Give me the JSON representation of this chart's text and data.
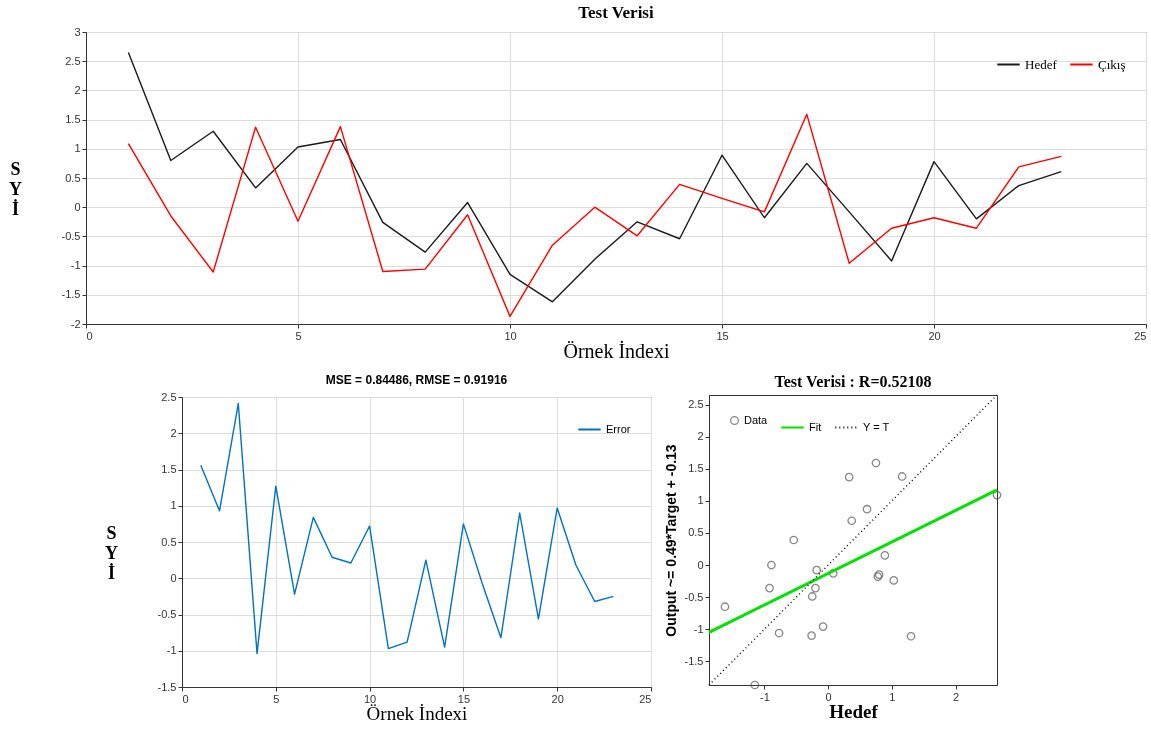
{
  "chart_data": [
    {
      "type": "line",
      "title": "Test Verisi",
      "xlabel": "Örnek İndexi",
      "ylabel": "SYİ",
      "x": [
        1,
        2,
        3,
        4,
        5,
        6,
        7,
        8,
        9,
        10,
        11,
        12,
        13,
        14,
        15,
        16,
        17,
        18,
        19,
        20,
        21,
        22,
        23
      ],
      "xlim": [
        0,
        25
      ],
      "xticks": [
        0,
        5,
        10,
        15,
        20,
        25
      ],
      "ylim": [
        -2,
        3
      ],
      "yticks": [
        -2,
        -1.5,
        -1,
        -0.5,
        0,
        0.5,
        1,
        1.5,
        2,
        2.5,
        3
      ],
      "grid": true,
      "legend": "top right",
      "series": [
        {
          "name": "Hedef",
          "color": "#1a1a1a",
          "values": [
            2.65,
            0.8,
            1.3,
            0.33,
            1.03,
            1.16,
            -0.26,
            -0.77,
            0.08,
            -1.15,
            -1.62,
            -0.89,
            -0.25,
            -0.54,
            0.89,
            -0.18,
            0.75,
            -0.08,
            -0.92,
            0.78,
            -0.2,
            0.37,
            0.61
          ]
        },
        {
          "name": "Çıkış",
          "color": "#ff0000",
          "values": [
            1.09,
            -0.15,
            -1.11,
            1.37,
            -0.24,
            1.38,
            -1.1,
            -1.06,
            -0.13,
            -1.87,
            -0.65,
            0.0,
            -0.49,
            0.39,
            0.15,
            -0.08,
            1.59,
            -0.96,
            -0.36,
            -0.18,
            -0.36,
            0.69,
            0.87
          ]
        }
      ]
    },
    {
      "type": "line",
      "title": "MSE = 0.84486, RMSE = 0.91916",
      "xlabel": "Örnek İndexi",
      "ylabel": "SYİ",
      "x": [
        1,
        2,
        3,
        4,
        5,
        6,
        7,
        8,
        9,
        10,
        11,
        12,
        13,
        14,
        15,
        16,
        17,
        18,
        19,
        20,
        21,
        22,
        23
      ],
      "xlim": [
        0,
        25
      ],
      "xticks": [
        0,
        5,
        10,
        15,
        20,
        25
      ],
      "ylim": [
        -1.5,
        2.5
      ],
      "yticks": [
        -1.5,
        -1,
        -0.5,
        0,
        0.5,
        1,
        1.5,
        2,
        2.5
      ],
      "grid": true,
      "legend": "top right",
      "series": [
        {
          "name": "Error",
          "color": "#0072bd",
          "values": [
            1.56,
            0.93,
            2.41,
            -1.04,
            1.27,
            -0.22,
            0.84,
            0.29,
            0.21,
            0.72,
            -0.97,
            -0.88,
            0.25,
            -0.95,
            0.75,
            -0.07,
            -0.82,
            0.9,
            -0.56,
            0.97,
            0.18,
            -0.32,
            -0.25
          ]
        }
      ]
    },
    {
      "type": "scatter",
      "title": "Test Verisi : R=0.52108",
      "xlabel": "Hedef",
      "ylabel": "Output ~= 0.49*Target + -0.13",
      "xlim": [
        -1.87,
        2.65
      ],
      "xticks": [
        -1,
        0,
        1,
        2
      ],
      "ylim": [
        -1.87,
        2.65
      ],
      "yticks": [
        -1.5,
        -1,
        -0.5,
        0,
        0.5,
        1,
        1.5,
        2,
        2.5
      ],
      "legend": "top left",
      "series": [
        {
          "name": "Data",
          "type": "scatter",
          "marker": "circle",
          "color": "#555555",
          "x": [
            2.65,
            0.8,
            1.3,
            0.33,
            1.03,
            1.16,
            -0.26,
            -0.77,
            0.08,
            -1.15,
            -1.62,
            -0.89,
            -0.25,
            -0.54,
            0.89,
            -0.18,
            0.75,
            -0.08,
            -0.92,
            0.78,
            -0.2,
            0.37,
            0.61
          ],
          "values": [
            1.09,
            -0.15,
            -1.11,
            1.37,
            -0.24,
            1.38,
            -1.1,
            -1.06,
            -0.13,
            -1.87,
            -0.65,
            0.0,
            -0.49,
            0.39,
            0.15,
            -0.08,
            1.59,
            -0.96,
            -0.36,
            -0.18,
            -0.36,
            0.69,
            0.87
          ]
        },
        {
          "name": "Fit",
          "type": "line",
          "color": "#00e000",
          "x": [
            -1.87,
            2.65
          ],
          "values": [
            -1.05,
            1.17
          ]
        },
        {
          "name": "Y = T",
          "type": "line",
          "line_style": "dotted",
          "color": "#000000",
          "x": [
            -1.87,
            2.65
          ],
          "values": [
            -1.87,
            2.65
          ]
        }
      ]
    }
  ]
}
